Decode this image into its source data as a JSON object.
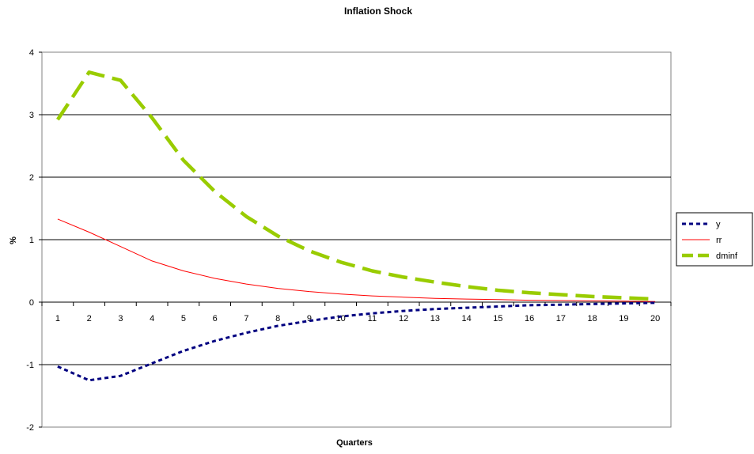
{
  "chart_data": {
    "type": "line",
    "title": "Inflation Shock",
    "xlabel": "Quarters",
    "ylabel": "%",
    "x": [
      1,
      2,
      3,
      4,
      5,
      6,
      7,
      8,
      9,
      10,
      11,
      12,
      13,
      14,
      15,
      16,
      17,
      18,
      19,
      20
    ],
    "x_tick_labels": [
      "1",
      "2",
      "3",
      "4",
      "5",
      "6",
      "7",
      "8",
      "9",
      "10",
      "11",
      "12",
      "13",
      "14",
      "15",
      "16",
      "17",
      "18",
      "19",
      "20"
    ],
    "ylim": [
      -2,
      4
    ],
    "y_ticks": [
      -2,
      -1,
      0,
      1,
      2,
      3,
      4
    ],
    "y_tick_labels": [
      "-2",
      "-1",
      "0",
      "1",
      "2",
      "3",
      "4"
    ],
    "grid": "horizontal",
    "legend_position": "right",
    "series": [
      {
        "name": "y",
        "color": "#000080",
        "style": "dotted",
        "values": [
          -1.03,
          -1.25,
          -1.18,
          -0.98,
          -0.78,
          -0.62,
          -0.49,
          -0.38,
          -0.3,
          -0.23,
          -0.18,
          -0.14,
          -0.11,
          -0.09,
          -0.07,
          -0.05,
          -0.04,
          -0.03,
          -0.02,
          -0.01
        ]
      },
      {
        "name": "rr",
        "color": "#ff0000",
        "style": "solid",
        "values": [
          1.33,
          1.12,
          0.89,
          0.66,
          0.5,
          0.38,
          0.29,
          0.22,
          0.17,
          0.13,
          0.1,
          0.08,
          0.06,
          0.05,
          0.04,
          0.03,
          0.025,
          0.02,
          0.015,
          0.01
        ]
      },
      {
        "name": "dminf",
        "color": "#99cc00",
        "style": "dashed",
        "values": [
          2.92,
          3.68,
          3.55,
          2.95,
          2.27,
          1.77,
          1.37,
          1.06,
          0.82,
          0.64,
          0.5,
          0.4,
          0.32,
          0.25,
          0.19,
          0.15,
          0.12,
          0.09,
          0.07,
          0.05
        ]
      }
    ]
  }
}
